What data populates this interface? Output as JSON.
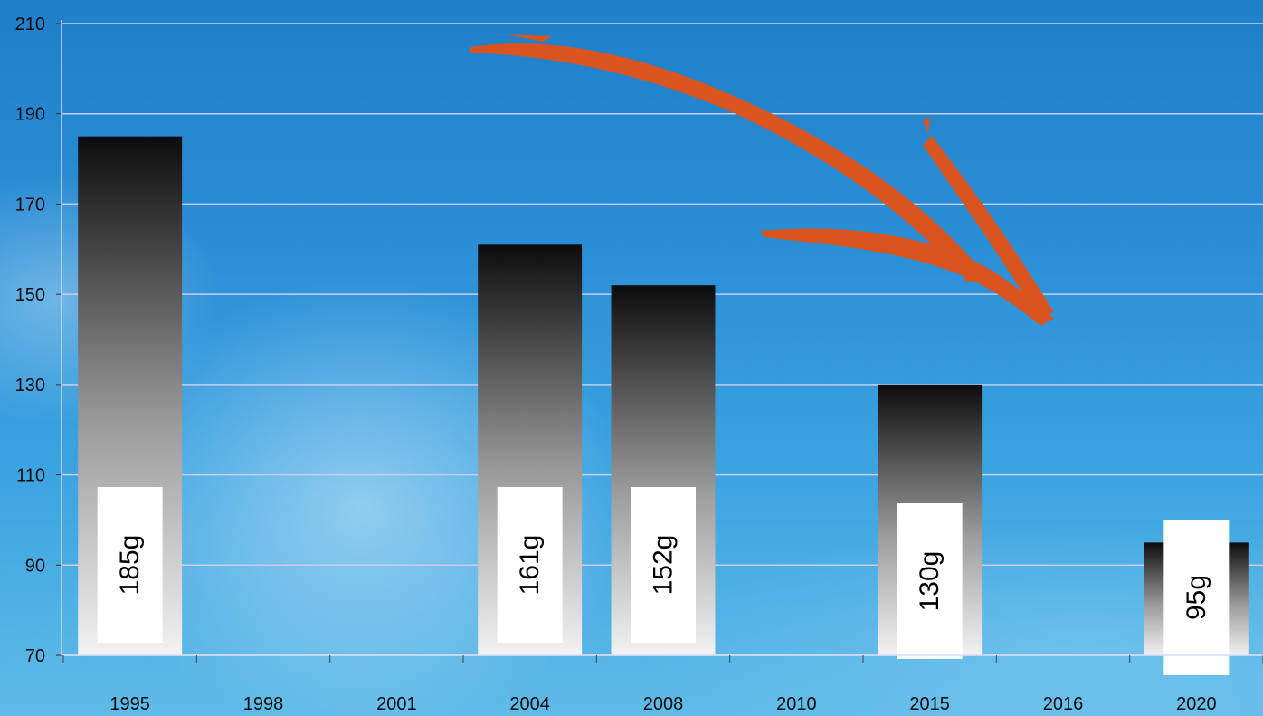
{
  "chart_data": {
    "type": "bar",
    "categories": [
      "1995",
      "1998",
      "2001",
      "2004",
      "2008",
      "2010",
      "2015",
      "2016",
      "2020"
    ],
    "values": [
      185,
      null,
      null,
      161,
      152,
      null,
      130,
      null,
      95
    ],
    "data_labels": [
      "185g",
      "",
      "",
      "161g",
      "152g",
      "",
      "130g",
      "",
      "95g"
    ],
    "y_ticks": [
      "70",
      "90",
      "110",
      "130",
      "150",
      "170",
      "190",
      "210"
    ],
    "ylim": [
      70,
      210
    ],
    "grid": true,
    "legend": "none",
    "annotation": "orange downward-trend arrow",
    "colors": {
      "bar_top": "#0c0c0c",
      "bar_bottom": "#f2f2f2",
      "gridline": "#c9cdf2",
      "arrow": "#d9541e",
      "label_box": "#ffffff"
    }
  }
}
